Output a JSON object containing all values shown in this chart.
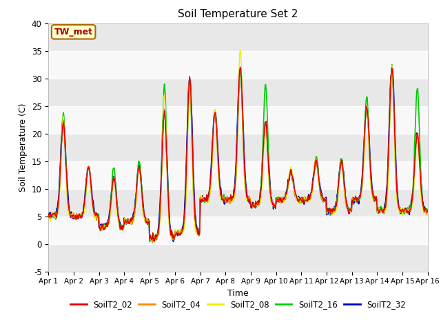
{
  "title": "Soil Temperature Set 2",
  "ylabel": "Soil Temperature (C)",
  "xlabel": "Time",
  "ylim": [
    -5,
    40
  ],
  "xlim": [
    0,
    360
  ],
  "annotation": "TW_met",
  "fig_bg_color": "#ffffff",
  "plot_bg_color": "#ffffff",
  "series": {
    "SoilT2_02": {
      "color": "#dd0000",
      "lw": 1.0
    },
    "SoilT2_04": {
      "color": "#ff8800",
      "lw": 1.0
    },
    "SoilT2_08": {
      "color": "#eeee00",
      "lw": 1.0
    },
    "SoilT2_16": {
      "color": "#00cc00",
      "lw": 1.2
    },
    "SoilT2_32": {
      "color": "#0000bb",
      "lw": 1.5
    }
  },
  "xtick_labels": [
    "Apr 1",
    "Apr 2",
    "Apr 3",
    "Apr 4",
    "Apr 5",
    "Apr 6",
    "Apr 7",
    "Apr 8",
    "Apr 9",
    "Apr 10",
    "Apr 11",
    "Apr 12",
    "Apr 13",
    "Apr 14",
    "Apr 15",
    "Apr 16"
  ],
  "xtick_positions": [
    0,
    24,
    48,
    72,
    96,
    120,
    144,
    168,
    192,
    216,
    240,
    264,
    288,
    312,
    336,
    360
  ],
  "ytick_positions": [
    -5,
    0,
    5,
    10,
    15,
    20,
    25,
    30,
    35,
    40
  ],
  "band_color_light": "#e8e8e8",
  "band_color_dark": "#d0d0d0",
  "n_points": 721
}
